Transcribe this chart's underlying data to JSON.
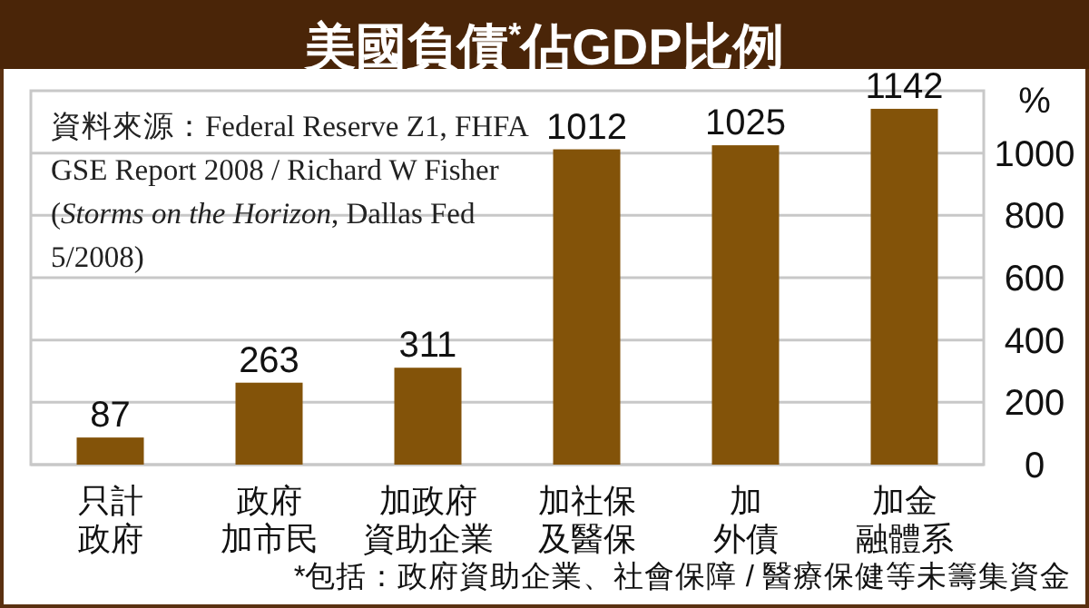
{
  "chart_data": {
    "type": "bar",
    "title": "美國負債$^{*}$佔GDP比例",
    "ylabel": "%",
    "categories": [
      "只計政府",
      "政府加市民",
      "加政府資助企業",
      "加社保及醫保",
      "加外債",
      "加金融體系"
    ],
    "values": [
      87,
      263,
      311,
      1012,
      1025,
      1142
    ],
    "color": "#835309",
    "ylim": [
      0,
      1200
    ],
    "yticks": [
      0,
      200,
      400,
      600,
      800,
      1000
    ],
    "grid": "y",
    "data_labels": true,
    "annotations": [
      "資料來源：Federal Reserve Z1, FHFA GSE Report 2008 / Richard W Fisher (*Storms on the Horizon*, Dallas Fed 5/2008)",
      "*包括：政府資助企業、社會保障 / 醫療保健等未籌集資金"
    ]
  }
}
